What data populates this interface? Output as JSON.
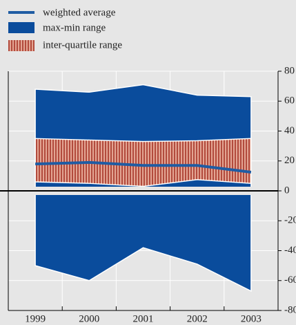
{
  "chart_data": {
    "type": "range-area",
    "categories": [
      "1999",
      "2000",
      "2001",
      "2002",
      "2003"
    ],
    "series": [
      {
        "name": "weighted average",
        "color": "#1f5ca3",
        "values": [
          18,
          19,
          17,
          17,
          12.5
        ]
      },
      {
        "name": "max-min range",
        "color": "#0a4c9c",
        "high": [
          68,
          66,
          71,
          64,
          63
        ],
        "low": [
          -50,
          -60,
          -38,
          -49,
          -67
        ]
      },
      {
        "name": "inter-quartile range",
        "color": "#d88a78",
        "high": [
          35,
          34,
          33,
          33.5,
          35
        ],
        "low": [
          6,
          5,
          3,
          7.5,
          5
        ]
      }
    ],
    "ylim": [
      -80,
      80
    ],
    "yticks": [
      80,
      60,
      40,
      20,
      0,
      -20,
      -40,
      -60,
      -80
    ],
    "grid": true
  }
}
